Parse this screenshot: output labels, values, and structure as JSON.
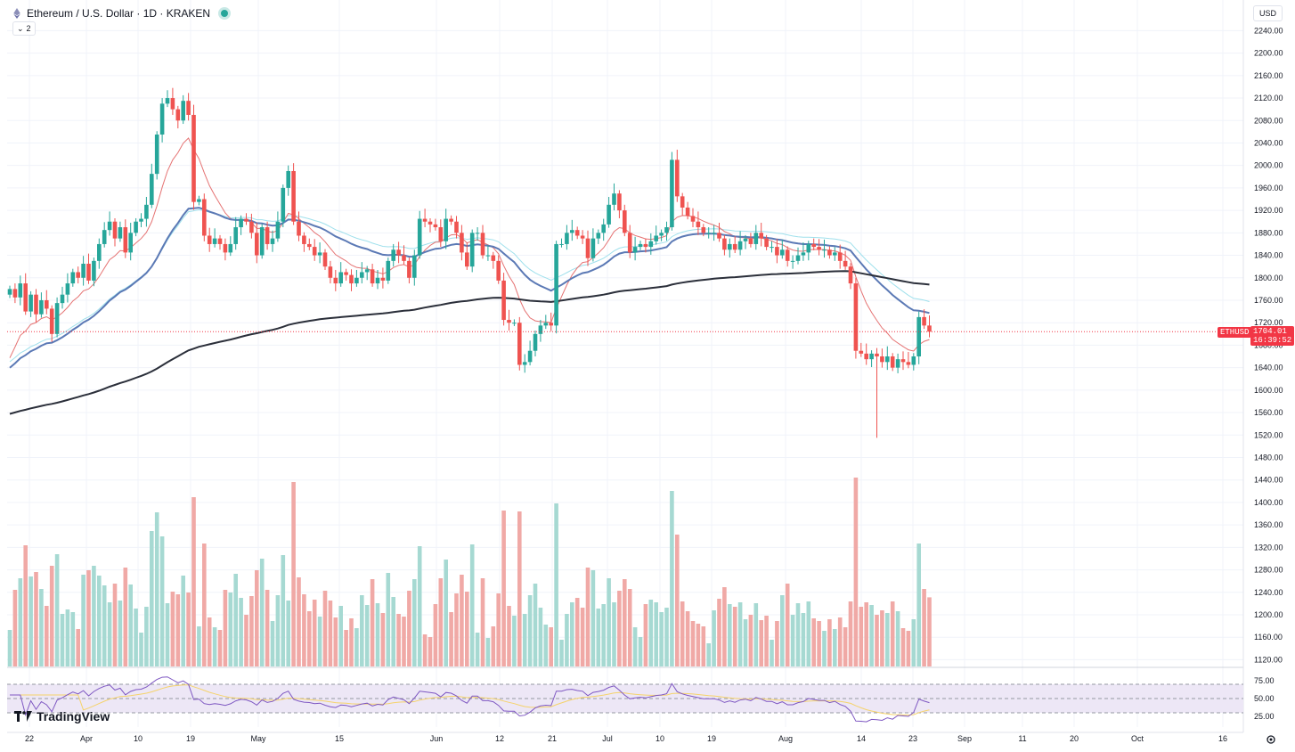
{
  "header": {
    "symbol_title": "Ethereum / U.S. Dollar · 1D · KRAKEN",
    "collapse_count": "2",
    "currency": "USD"
  },
  "price_tag": {
    "symbol": "ETHUSD",
    "last_price": "1704.01",
    "countdown": "16:39:52"
  },
  "branding": {
    "logo_text": "TradingView"
  },
  "colors": {
    "up": "#26a69a",
    "down": "#ef5350",
    "vol_up": "#a6d9d2",
    "vol_down": "#f0a9a6",
    "ema_short": "#e57373",
    "ema_mid": "#5b79b5",
    "ema_long": "#2b2f3a",
    "ema_light": "#9fe0ec",
    "rsi_line": "#7e57c2",
    "rsi_ma": "#f5d36b",
    "rsi_band": "#ede7f6"
  },
  "chart_data": {
    "type": "candlestick",
    "symbol": "ETHUSD",
    "interval": "1D",
    "exchange": "KRAKEN",
    "y_axis": {
      "ticks": [
        "2240.00",
        "2200.00",
        "2160.00",
        "2120.00",
        "2080.00",
        "2040.00",
        "2000.00",
        "1960.00",
        "1920.00",
        "1880.00",
        "1840.00",
        "1800.00",
        "1760.00",
        "1720.00",
        "1680.00",
        "1640.00",
        "1600.00",
        "1560.00",
        "1520.00",
        "1480.00",
        "1440.00",
        "1400.00",
        "1360.00",
        "1320.00",
        "1280.00",
        "1240.00",
        "1200.00",
        "1160.00",
        "1120.00"
      ],
      "range": [
        1108,
        2266
      ]
    },
    "x_axis": {
      "labels": [
        "22",
        "Apr",
        "10",
        "19",
        "May",
        "15",
        "Jun",
        "12",
        "21",
        "Jul",
        "10",
        "19",
        "Aug",
        "14",
        "23",
        "Sep",
        "11",
        "20",
        "Oct",
        "16"
      ]
    },
    "rsi_axis": {
      "ticks": [
        "75.00",
        "50.00",
        "25.00"
      ],
      "range": [
        10,
        90
      ]
    },
    "closes": [
      1780,
      1765,
      1790,
      1740,
      1770,
      1735,
      1760,
      1745,
      1700,
      1755,
      1770,
      1790,
      1810,
      1800,
      1825,
      1795,
      1830,
      1860,
      1885,
      1900,
      1870,
      1890,
      1845,
      1880,
      1900,
      1905,
      1930,
      1985,
      2055,
      2110,
      2120,
      2100,
      2080,
      2115,
      2090,
      1935,
      1940,
      1875,
      1860,
      1870,
      1860,
      1845,
      1860,
      1890,
      1905,
      1900,
      1880,
      1840,
      1890,
      1860,
      1870,
      1900,
      1960,
      1990,
      1900,
      1875,
      1860,
      1855,
      1840,
      1845,
      1820,
      1800,
      1790,
      1810,
      1805,
      1790,
      1800,
      1810,
      1815,
      1790,
      1800,
      1795,
      1830,
      1850,
      1840,
      1830,
      1800,
      1840,
      1905,
      1900,
      1895,
      1890,
      1865,
      1905,
      1900,
      1880,
      1845,
      1820,
      1880,
      1880,
      1840,
      1840,
      1830,
      1795,
      1725,
      1720,
      1720,
      1645,
      1650,
      1670,
      1700,
      1715,
      1720,
      1715,
      1860,
      1860,
      1880,
      1885,
      1875,
      1870,
      1835,
      1870,
      1880,
      1895,
      1930,
      1950,
      1920,
      1880,
      1845,
      1855,
      1860,
      1855,
      1865,
      1875,
      1880,
      1890,
      2010,
      1945,
      1925,
      1910,
      1900,
      1890,
      1880,
      1880,
      1880,
      1870,
      1850,
      1860,
      1850,
      1865,
      1870,
      1860,
      1880,
      1870,
      1855,
      1855,
      1840,
      1850,
      1830,
      1830,
      1840,
      1845,
      1860,
      1855,
      1850,
      1850,
      1840,
      1845,
      1830,
      1820,
      1790,
      1670,
      1665,
      1655,
      1665,
      1660,
      1650,
      1660,
      1640,
      1655,
      1650,
      1645,
      1660,
      1730,
      1715,
      1704
    ],
    "series": [
      {
        "name": "EMA short"
      },
      {
        "name": "EMA mid"
      },
      {
        "name": "EMA long"
      },
      {
        "name": "EMA light"
      }
    ],
    "grid": true
  }
}
